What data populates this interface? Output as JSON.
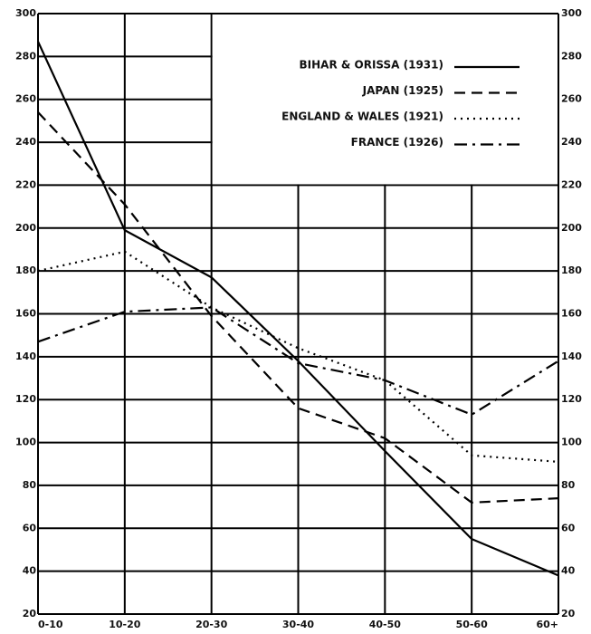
{
  "chart_data": {
    "type": "line",
    "categories": [
      "0-10",
      "10-20",
      "20-30",
      "30-40",
      "40-50",
      "50-60",
      "60+"
    ],
    "series": [
      {
        "name": "BIHAR & ORISSA  (1931)",
        "color": "#000000",
        "dash": "solid",
        "values": [
          287,
          199,
          177,
          138,
          96,
          55,
          38
        ]
      },
      {
        "name": "JAPAN  (1925)",
        "color": "#000000",
        "dash": "dashed",
        "values": [
          254,
          211,
          159,
          116,
          102,
          72,
          74
        ]
      },
      {
        "name": "ENGLAND & WALES (1921)",
        "color": "#000000",
        "dash": "dotted",
        "values": [
          180,
          189,
          163,
          144,
          129,
          94,
          91
        ]
      },
      {
        "name": "FRANCE  (1926)",
        "color": "#000000",
        "dash": "dashdot",
        "values": [
          147,
          161,
          163,
          137,
          129,
          113,
          138
        ]
      }
    ],
    "ylim": [
      20,
      300
    ],
    "yticks": [
      20,
      40,
      60,
      80,
      100,
      120,
      140,
      160,
      180,
      200,
      220,
      240,
      260,
      280,
      300
    ],
    "grid": true
  }
}
